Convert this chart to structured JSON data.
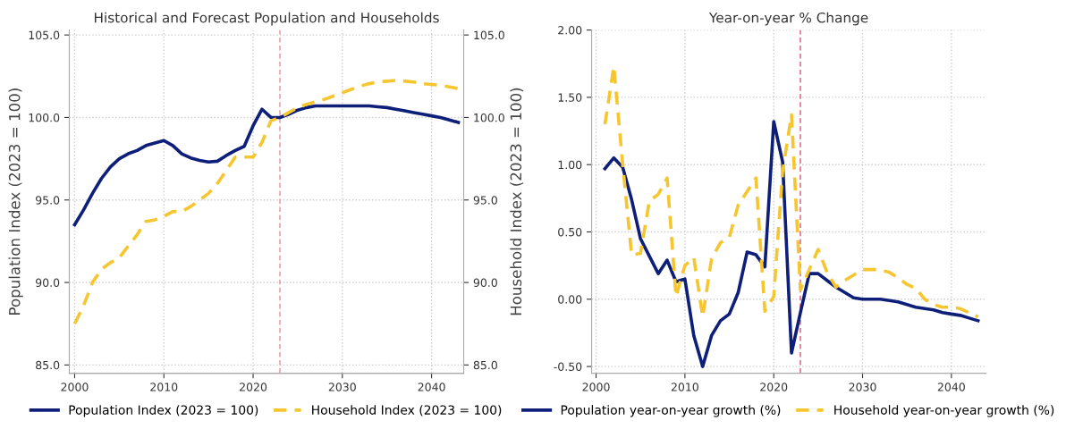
{
  "chart_data": [
    {
      "type": "line",
      "title": "Historical and Forecast Population and Households",
      "ylabel": "Population Index (2023 = 100)",
      "y2label": "Household Index (2023 = 100)",
      "x": [
        2000,
        2001,
        2002,
        2003,
        2004,
        2005,
        2006,
        2007,
        2008,
        2009,
        2010,
        2011,
        2012,
        2013,
        2014,
        2015,
        2016,
        2017,
        2018,
        2019,
        2020,
        2021,
        2022,
        2023,
        2024,
        2025,
        2026,
        2027,
        2028,
        2029,
        2030,
        2031,
        2032,
        2033,
        2034,
        2035,
        2036,
        2037,
        2038,
        2039,
        2040,
        2041,
        2042,
        2043
      ],
      "series": [
        {
          "name": "Population Index (2023 = 100)",
          "color": "#0d1f78",
          "line_style": "solid",
          "values": [
            93.5,
            94.4,
            95.4,
            96.3,
            97.0,
            97.5,
            97.8,
            98.0,
            98.3,
            98.45,
            98.6,
            98.3,
            97.8,
            97.55,
            97.4,
            97.3,
            97.35,
            97.7,
            98.0,
            98.25,
            99.5,
            100.5,
            100.0,
            100.0,
            100.2,
            100.45,
            100.6,
            100.7,
            100.7,
            100.7,
            100.7,
            100.7,
            100.7,
            100.7,
            100.65,
            100.6,
            100.5,
            100.4,
            100.3,
            100.2,
            100.1,
            100.0,
            99.85,
            99.7
          ]
        },
        {
          "name": "Household Index (2023 = 100)",
          "color": "#f6c630",
          "line_style": "dashed",
          "axis": "y2",
          "values": [
            87.5,
            88.6,
            90.0,
            90.8,
            91.2,
            91.5,
            92.2,
            92.9,
            93.7,
            93.8,
            94.0,
            94.3,
            94.3,
            94.6,
            95.0,
            95.4,
            96.0,
            96.8,
            97.6,
            97.6,
            97.6,
            98.5,
            99.8,
            100.0,
            100.3,
            100.6,
            100.8,
            100.95,
            101.1,
            101.3,
            101.5,
            101.7,
            101.9,
            102.05,
            102.15,
            102.2,
            102.25,
            102.2,
            102.15,
            102.05,
            102.0,
            101.95,
            101.85,
            101.75
          ]
        }
      ],
      "xlim": [
        1999.4,
        2043.6
      ],
      "xticks": [
        2000,
        2010,
        2020,
        2030,
        2040
      ],
      "ylim": [
        84.5,
        105.3
      ],
      "yticks": [
        {
          "value": 85,
          "label": "85.0"
        },
        {
          "value": 90,
          "label": "90.0"
        },
        {
          "value": 95,
          "label": "95.0"
        },
        {
          "value": 100,
          "label": "100.0"
        },
        {
          "value": 105,
          "label": "105.0"
        }
      ],
      "y2lim": [
        84.5,
        105.3
      ],
      "y2ticks": [
        {
          "value": 85,
          "label": "85.0"
        },
        {
          "value": 90,
          "label": "90.0"
        },
        {
          "value": 95,
          "label": "95.0"
        },
        {
          "value": 100,
          "label": "100.0"
        },
        {
          "value": 105,
          "label": "105.0"
        }
      ],
      "ref_lines": [
        {
          "axis": "x",
          "value": 2023,
          "color": "#e8909c",
          "line_style": "dashed"
        }
      ],
      "grid": true,
      "legend": "bottom"
    },
    {
      "type": "line",
      "title": "Year-on-year % Change",
      "x": [
        2001,
        2002,
        2003,
        2004,
        2005,
        2006,
        2007,
        2008,
        2009,
        2010,
        2011,
        2012,
        2013,
        2014,
        2015,
        2016,
        2017,
        2018,
        2019,
        2020,
        2021,
        2022,
        2023,
        2024,
        2025,
        2026,
        2027,
        2028,
        2029,
        2030,
        2031,
        2032,
        2033,
        2034,
        2035,
        2036,
        2037,
        2038,
        2039,
        2040,
        2041,
        2042,
        2043
      ],
      "series": [
        {
          "name": "Population year-on-year growth (%)",
          "color": "#0d1f78",
          "line_style": "solid",
          "values": [
            0.97,
            1.05,
            0.98,
            0.74,
            0.45,
            0.32,
            0.19,
            0.29,
            0.13,
            0.15,
            -0.27,
            -0.5,
            -0.27,
            -0.16,
            -0.11,
            0.05,
            0.35,
            0.33,
            0.24,
            1.32,
            1.02,
            -0.4,
            -0.1,
            0.19,
            0.19,
            0.14,
            0.09,
            0.05,
            0.01,
            0.0,
            0.0,
            0.0,
            -0.01,
            -0.02,
            -0.04,
            -0.06,
            -0.07,
            -0.08,
            -0.1,
            -0.11,
            -0.12,
            -0.14,
            -0.16
          ]
        },
        {
          "name": "Household year-on-year growth (%)",
          "color": "#f6c630",
          "line_style": "dashed",
          "values": [
            1.3,
            1.73,
            1.0,
            0.33,
            0.34,
            0.73,
            0.78,
            0.9,
            0.02,
            0.25,
            0.31,
            -0.13,
            0.3,
            0.42,
            0.46,
            0.7,
            0.8,
            0.9,
            -0.09,
            0.02,
            0.95,
            1.37,
            0.07,
            0.22,
            0.37,
            0.2,
            0.09,
            0.14,
            0.18,
            0.22,
            0.22,
            0.22,
            0.2,
            0.16,
            0.11,
            0.08,
            0.0,
            -0.04,
            -0.06,
            -0.06,
            -0.07,
            -0.1,
            -0.13
          ]
        }
      ],
      "xlim": [
        1999.5,
        2043.9
      ],
      "xticks": [
        2000,
        2010,
        2020,
        2030,
        2040
      ],
      "ylim": [
        -0.55,
        2.0
      ],
      "yticks": [
        {
          "value": -0.5,
          "label": "-0.50"
        },
        {
          "value": 0,
          "label": "0.00"
        },
        {
          "value": 0.5,
          "label": "0.50"
        },
        {
          "value": 1.0,
          "label": "1.00"
        },
        {
          "value": 1.5,
          "label": "1.50"
        },
        {
          "value": 2.0,
          "label": "2.00"
        }
      ],
      "ref_lines": [
        {
          "axis": "x",
          "value": 2023,
          "color": "#e0507a",
          "line_style": "dashed"
        }
      ],
      "grid": true,
      "legend": "bottom"
    }
  ]
}
